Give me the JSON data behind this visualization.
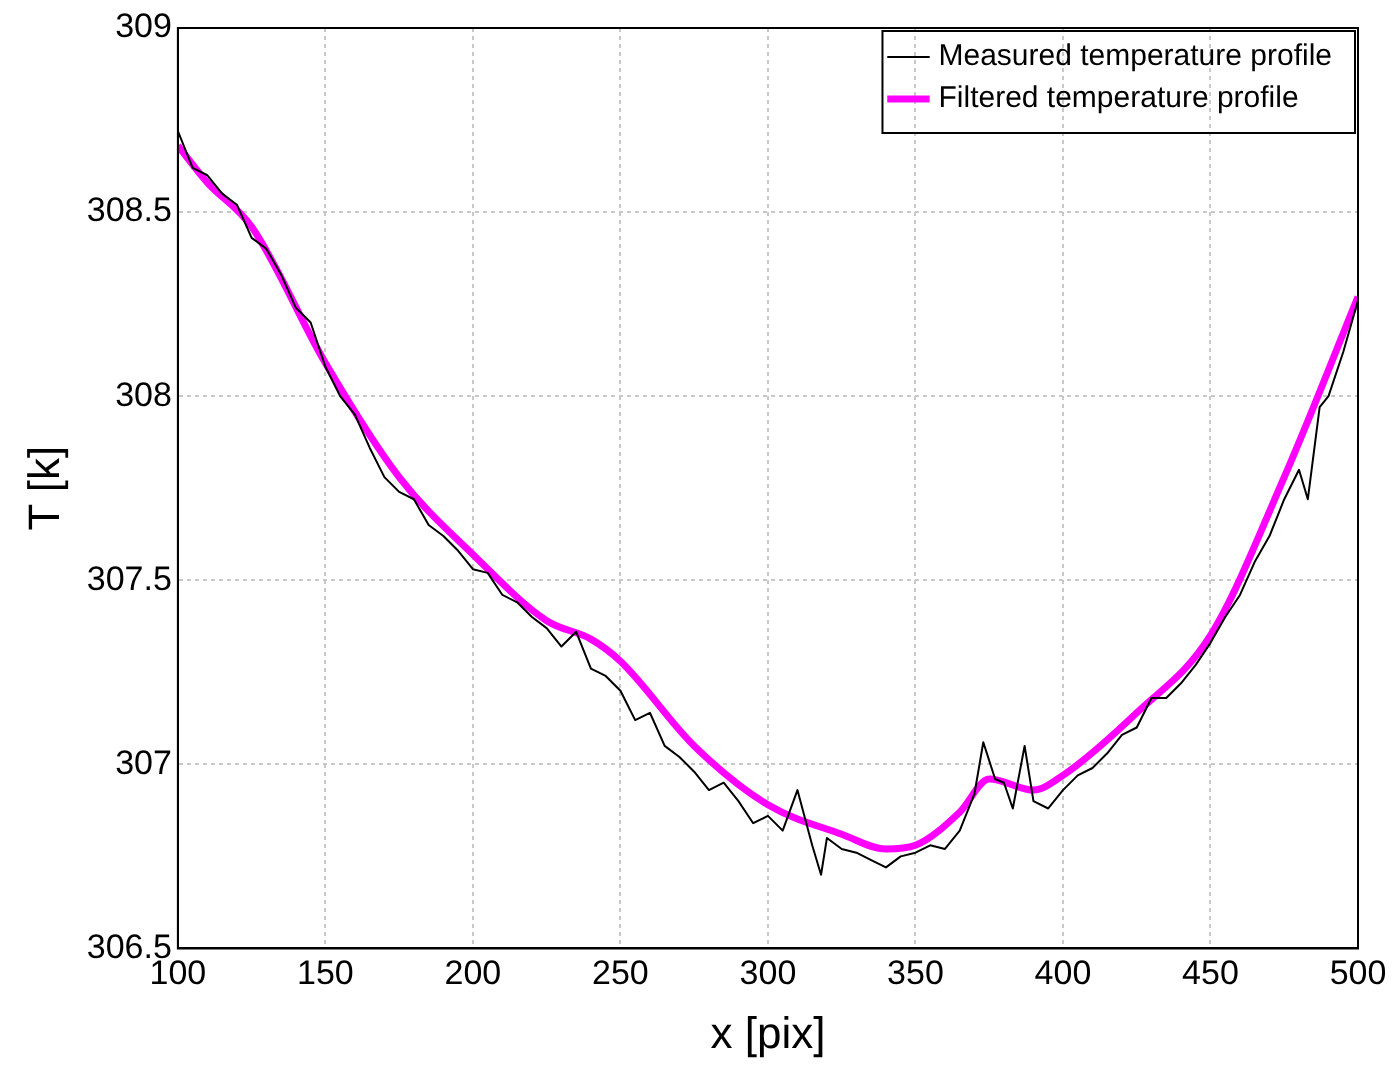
{
  "chart_data": {
    "type": "line",
    "xlabel": "x [pix]",
    "ylabel": "T [k]",
    "xlim": [
      100,
      500
    ],
    "ylim": [
      306.5,
      309
    ],
    "xticks": [
      100,
      150,
      200,
      250,
      300,
      350,
      400,
      450,
      500
    ],
    "yticks": [
      306.5,
      307,
      307.5,
      308,
      308.5,
      309
    ],
    "grid": true,
    "legend": "top right",
    "marker": "none",
    "line_style": "solid",
    "series": [
      {
        "name": "Measured temperature profile",
        "color": "#000000",
        "x": [
          100,
          105,
          110,
          115,
          120,
          125,
          130,
          135,
          140,
          145,
          150,
          155,
          160,
          165,
          170,
          175,
          180,
          185,
          190,
          195,
          200,
          205,
          210,
          215,
          220,
          225,
          230,
          235,
          240,
          245,
          250,
          255,
          260,
          265,
          270,
          275,
          280,
          285,
          290,
          295,
          300,
          305,
          310,
          315,
          318,
          320,
          325,
          330,
          335,
          340,
          345,
          350,
          355,
          360,
          365,
          370,
          373,
          377,
          380,
          383,
          387,
          390,
          395,
          400,
          405,
          410,
          415,
          420,
          425,
          430,
          435,
          440,
          445,
          450,
          455,
          460,
          465,
          470,
          475,
          480,
          483,
          487,
          490,
          495,
          500
        ],
        "values": [
          308.72,
          308.62,
          308.6,
          308.55,
          308.52,
          308.43,
          308.4,
          308.33,
          308.24,
          308.2,
          308.08,
          308.0,
          307.95,
          307.86,
          307.78,
          307.74,
          307.72,
          307.65,
          307.62,
          307.58,
          307.53,
          307.52,
          307.46,
          307.44,
          307.4,
          307.37,
          307.32,
          307.36,
          307.26,
          307.24,
          307.2,
          307.12,
          307.14,
          307.05,
          307.02,
          306.98,
          306.93,
          306.95,
          306.9,
          306.84,
          306.86,
          306.82,
          306.93,
          306.78,
          306.7,
          306.8,
          306.77,
          306.76,
          306.74,
          306.72,
          306.75,
          306.76,
          306.78,
          306.77,
          306.82,
          306.92,
          307.06,
          306.96,
          306.95,
          306.88,
          307.05,
          306.9,
          306.88,
          306.93,
          306.97,
          306.99,
          307.03,
          307.08,
          307.1,
          307.18,
          307.18,
          307.22,
          307.27,
          307.33,
          307.4,
          307.46,
          307.55,
          307.62,
          307.72,
          307.8,
          307.72,
          307.97,
          308.0,
          308.12,
          308.26
        ]
      },
      {
        "name": "Filtered temperature profile",
        "color": "#ff00ff",
        "x": [
          100,
          110,
          125,
          150,
          175,
          200,
          225,
          240,
          250,
          275,
          300,
          325,
          340,
          350,
          365,
          375,
          390,
          400,
          425,
          450,
          475,
          500
        ],
        "values": [
          308.68,
          308.58,
          308.46,
          308.09,
          307.78,
          307.57,
          307.39,
          307.34,
          307.28,
          307.05,
          306.89,
          306.81,
          306.77,
          306.78,
          306.87,
          306.96,
          306.93,
          306.97,
          307.14,
          307.35,
          307.78,
          308.27
        ]
      }
    ]
  }
}
